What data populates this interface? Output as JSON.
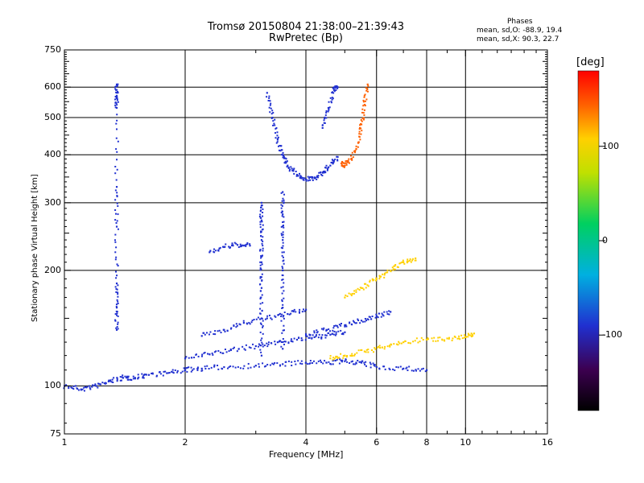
{
  "header": {
    "title_line1": "Tromsø 20150804 21:38:00–21:39:43",
    "title_line2": "RwPretec (Bp)"
  },
  "stats": {
    "heading": "Phases",
    "line_o": "mean, sd,O: -88.9, 19.4",
    "line_x": "mean, sd,X:  90.3, 22.7"
  },
  "chart_data": {
    "type": "scatter",
    "xlabel": "Frequency [MHz]",
    "ylabel": "Stationary phase Virtual Height [km]",
    "x_scale": "log",
    "y_scale": "log",
    "xlim": [
      1,
      16
    ],
    "ylim": [
      75,
      750
    ],
    "x_ticks": [
      1,
      2,
      4,
      6,
      8,
      10,
      16
    ],
    "y_ticks": [
      75,
      100,
      200,
      300,
      400,
      500,
      600,
      750
    ],
    "x_gridlines": [
      2,
      4,
      6,
      8,
      10
    ],
    "y_gridlines": [
      100,
      200,
      300,
      400,
      500,
      600
    ],
    "colorbar": {
      "label": "[deg]",
      "range": [
        -180,
        180
      ],
      "ticks": [
        -100,
        0,
        100
      ],
      "colors": [
        "#000000",
        "#3c0050",
        "#2030d0",
        "#00b0e0",
        "#00d060",
        "#c0e000",
        "#ffd000",
        "#ff6000",
        "#ff0000"
      ]
    },
    "series": [
      {
        "trace": "o-low-trace-1",
        "points": [
          [
            1.0,
            100
          ],
          [
            1.1,
            98
          ],
          [
            1.2,
            100
          ],
          [
            1.3,
            103
          ],
          [
            1.4,
            105
          ],
          [
            1.5,
            105
          ],
          [
            1.6,
            107
          ],
          [
            1.8,
            108
          ],
          [
            2.0,
            110
          ],
          [
            2.2,
            111
          ],
          [
            2.5,
            112
          ],
          [
            3.0,
            113
          ],
          [
            3.5,
            114
          ],
          [
            4.0,
            115
          ],
          [
            4.5,
            115
          ],
          [
            5.0,
            116
          ],
          [
            5.5,
            115
          ],
          [
            6.0,
            112
          ],
          [
            7.0,
            111
          ],
          [
            8.0,
            110
          ]
        ],
        "phase": -100
      },
      {
        "trace": "o-low-trace-2",
        "points": [
          [
            2.0,
            118
          ],
          [
            2.3,
            121
          ],
          [
            2.6,
            124
          ],
          [
            3.0,
            127
          ],
          [
            3.4,
            130
          ],
          [
            3.8,
            132
          ],
          [
            4.2,
            134
          ],
          [
            4.6,
            136
          ],
          [
            5.0,
            138
          ]
        ],
        "phase": -100
      },
      {
        "trace": "o-low-trace-3",
        "points": [
          [
            2.2,
            135
          ],
          [
            2.5,
            140
          ],
          [
            2.8,
            146
          ],
          [
            3.2,
            150
          ],
          [
            3.6,
            154
          ],
          [
            4.0,
            158
          ]
        ],
        "phase": -110
      },
      {
        "trace": "o-low-trace-4",
        "points": [
          [
            2.3,
            223
          ],
          [
            2.5,
            230
          ],
          [
            2.7,
            233
          ],
          [
            2.9,
            232
          ]
        ],
        "phase": -95
      },
      {
        "trace": "o-low-trace-5",
        "points": [
          [
            4.0,
            136
          ],
          [
            4.5,
            140
          ],
          [
            5.0,
            144
          ],
          [
            5.5,
            148
          ],
          [
            6.0,
            152
          ],
          [
            6.5,
            156
          ]
        ],
        "phase": -105
      },
      {
        "trace": "x-low-trace",
        "points": [
          [
            4.6,
            118
          ],
          [
            5.0,
            120
          ],
          [
            5.6,
            123
          ],
          [
            6.2,
            126
          ],
          [
            7.0,
            130
          ],
          [
            8.0,
            132
          ],
          [
            9.0,
            133
          ],
          [
            10.0,
            134
          ],
          [
            10.5,
            137
          ]
        ],
        "phase": 90
      },
      {
        "trace": "x-mid-trace",
        "points": [
          [
            5.0,
            170
          ],
          [
            5.5,
            180
          ],
          [
            6.0,
            190
          ],
          [
            6.5,
            200
          ],
          [
            7.0,
            210
          ],
          [
            7.5,
            215
          ]
        ],
        "phase": 100
      },
      {
        "trace": "o-f-column-1",
        "points": [
          [
            3.1,
            120
          ],
          [
            3.1,
            150
          ],
          [
            3.1,
            180
          ],
          [
            3.1,
            210
          ],
          [
            3.1,
            240
          ],
          [
            3.1,
            270
          ],
          [
            3.1,
            300
          ]
        ],
        "phase": -120
      },
      {
        "trace": "o-f-column-2",
        "points": [
          [
            3.5,
            125
          ],
          [
            3.5,
            160
          ],
          [
            3.5,
            200
          ],
          [
            3.5,
            240
          ],
          [
            3.5,
            280
          ],
          [
            3.5,
            320
          ]
        ],
        "phase": -115
      },
      {
        "trace": "o-f-arc",
        "points": [
          [
            3.2,
            580
          ],
          [
            3.3,
            500
          ],
          [
            3.4,
            440
          ],
          [
            3.5,
            400
          ],
          [
            3.6,
            375
          ],
          [
            3.8,
            355
          ],
          [
            4.0,
            345
          ],
          [
            4.2,
            348
          ],
          [
            4.4,
            360
          ],
          [
            4.6,
            375
          ],
          [
            4.8,
            395
          ]
        ],
        "phase": -100
      },
      {
        "trace": "o-f-arc-right",
        "points": [
          [
            4.4,
            470
          ],
          [
            4.55,
            530
          ],
          [
            4.7,
            590
          ],
          [
            4.8,
            600
          ]
        ],
        "phase": -95
      },
      {
        "trace": "x-f-arc",
        "points": [
          [
            4.9,
            380
          ],
          [
            5.0,
            375
          ],
          [
            5.2,
            390
          ],
          [
            5.4,
            430
          ],
          [
            5.5,
            480
          ],
          [
            5.6,
            540
          ],
          [
            5.7,
            610
          ]
        ],
        "phase": 110
      },
      {
        "trace": "spike-1.35MHz",
        "points": [
          [
            1.35,
            610
          ],
          [
            1.35,
            570
          ],
          [
            1.35,
            530
          ],
          [
            1.35,
            330
          ],
          [
            1.35,
            260
          ],
          [
            1.35,
            185
          ],
          [
            1.35,
            160
          ],
          [
            1.35,
            140
          ]
        ],
        "phase": -110
      }
    ]
  }
}
